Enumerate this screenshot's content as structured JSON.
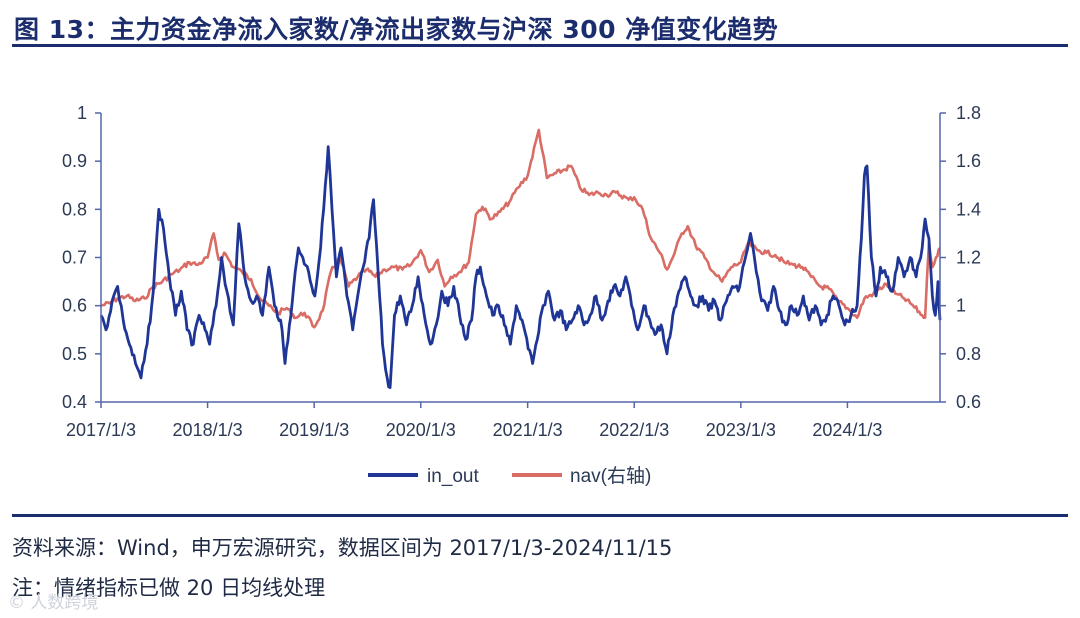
{
  "header": {
    "title": "图 13：主力资金净流入家数/净流出家数与沪深 300 净值变化趋势"
  },
  "footer": {
    "source": "资料来源：Wind，申万宏源研究，数据区间为 2017/1/3-2024/11/15",
    "note": "注：情绪指标已做 20 日均线处理",
    "watermark": "© 人数跨境"
  },
  "colors": {
    "accent": "#1c2d6e",
    "in_out": "#1f3696",
    "nav": "#d96c64",
    "axis": "#5566a8"
  },
  "chart_data": {
    "type": "line",
    "title": "",
    "x_tick_labels": [
      "2017/1/3",
      "2018/1/3",
      "2019/1/3",
      "2020/1/3",
      "2021/1/3",
      "2022/1/3",
      "2023/1/3",
      "2024/1/3"
    ],
    "x_range": [
      "2017/1/3",
      "2024/11/15"
    ],
    "y_left": {
      "min": 0.4,
      "max": 1.0,
      "ticks": [
        "0.4",
        "0.5",
        "0.6",
        "0.7",
        "0.8",
        "0.9",
        "1"
      ]
    },
    "y_right": {
      "min": 0.6,
      "max": 1.8,
      "ticks": [
        "0.6",
        "0.8",
        "1",
        "1.2",
        "1.4",
        "1.6",
        "1.8"
      ]
    },
    "legend_position": "bottom",
    "grid": false,
    "series": [
      {
        "name": "in_out",
        "axis": "left",
        "points": [
          [
            "2017-01-03",
            0.58
          ],
          [
            "2017-01-20",
            0.55
          ],
          [
            "2017-02-10",
            0.61
          ],
          [
            "2017-03-01",
            0.64
          ],
          [
            "2017-03-20",
            0.57
          ],
          [
            "2017-04-10",
            0.52
          ],
          [
            "2017-05-01",
            0.48
          ],
          [
            "2017-05-20",
            0.45
          ],
          [
            "2017-06-10",
            0.52
          ],
          [
            "2017-07-01",
            0.63
          ],
          [
            "2017-07-20",
            0.8
          ],
          [
            "2017-08-05",
            0.76
          ],
          [
            "2017-08-25",
            0.66
          ],
          [
            "2017-09-15",
            0.58
          ],
          [
            "2017-10-05",
            0.63
          ],
          [
            "2017-10-25",
            0.55
          ],
          [
            "2017-11-15",
            0.52
          ],
          [
            "2017-12-05",
            0.58
          ],
          [
            "2017-12-25",
            0.55
          ],
          [
            "2018-01-10",
            0.52
          ],
          [
            "2018-02-01",
            0.6
          ],
          [
            "2018-02-20",
            0.7
          ],
          [
            "2018-03-10",
            0.63
          ],
          [
            "2018-04-01",
            0.56
          ],
          [
            "2018-04-20",
            0.77
          ],
          [
            "2018-05-10",
            0.66
          ],
          [
            "2018-06-01",
            0.61
          ],
          [
            "2018-06-20",
            0.62
          ],
          [
            "2018-07-10",
            0.58
          ],
          [
            "2018-08-01",
            0.68
          ],
          [
            "2018-08-20",
            0.6
          ],
          [
            "2018-09-10",
            0.57
          ],
          [
            "2018-09-25",
            0.48
          ],
          [
            "2018-10-10",
            0.56
          ],
          [
            "2018-10-25",
            0.64
          ],
          [
            "2018-11-10",
            0.72
          ],
          [
            "2018-11-25",
            0.7
          ],
          [
            "2018-12-15",
            0.67
          ],
          [
            "2019-01-05",
            0.62
          ],
          [
            "2019-01-25",
            0.72
          ],
          [
            "2019-02-10",
            0.85
          ],
          [
            "2019-02-20",
            0.93
          ],
          [
            "2019-03-05",
            0.8
          ],
          [
            "2019-03-20",
            0.66
          ],
          [
            "2019-04-05",
            0.72
          ],
          [
            "2019-04-25",
            0.62
          ],
          [
            "2019-05-15",
            0.55
          ],
          [
            "2019-06-01",
            0.62
          ],
          [
            "2019-06-20",
            0.68
          ],
          [
            "2019-07-10",
            0.74
          ],
          [
            "2019-07-25",
            0.82
          ],
          [
            "2019-08-10",
            0.67
          ],
          [
            "2019-08-25",
            0.52
          ],
          [
            "2019-09-10",
            0.45
          ],
          [
            "2019-09-20",
            0.43
          ],
          [
            "2019-10-05",
            0.58
          ],
          [
            "2019-10-25",
            0.62
          ],
          [
            "2019-11-15",
            0.56
          ],
          [
            "2019-12-05",
            0.6
          ],
          [
            "2019-12-25",
            0.66
          ],
          [
            "2020-01-15",
            0.58
          ],
          [
            "2020-02-05",
            0.52
          ],
          [
            "2020-02-25",
            0.56
          ],
          [
            "2020-03-15",
            0.63
          ],
          [
            "2020-04-05",
            0.6
          ],
          [
            "2020-04-25",
            0.64
          ],
          [
            "2020-05-15",
            0.58
          ],
          [
            "2020-06-05",
            0.53
          ],
          [
            "2020-06-25",
            0.57
          ],
          [
            "2020-07-10",
            0.66
          ],
          [
            "2020-07-25",
            0.68
          ],
          [
            "2020-08-15",
            0.62
          ],
          [
            "2020-09-05",
            0.58
          ],
          [
            "2020-09-25",
            0.6
          ],
          [
            "2020-10-15",
            0.56
          ],
          [
            "2020-11-05",
            0.52
          ],
          [
            "2020-11-25",
            0.6
          ],
          [
            "2020-12-15",
            0.57
          ],
          [
            "2021-01-05",
            0.51
          ],
          [
            "2021-01-20",
            0.48
          ],
          [
            "2021-02-05",
            0.53
          ],
          [
            "2021-02-25",
            0.6
          ],
          [
            "2021-03-15",
            0.63
          ],
          [
            "2021-04-05",
            0.57
          ],
          [
            "2021-04-25",
            0.59
          ],
          [
            "2021-05-15",
            0.55
          ],
          [
            "2021-06-05",
            0.57
          ],
          [
            "2021-06-25",
            0.6
          ],
          [
            "2021-07-15",
            0.56
          ],
          [
            "2021-08-05",
            0.58
          ],
          [
            "2021-08-25",
            0.62
          ],
          [
            "2021-09-15",
            0.57
          ],
          [
            "2021-10-05",
            0.61
          ],
          [
            "2021-10-25",
            0.64
          ],
          [
            "2021-11-15",
            0.62
          ],
          [
            "2021-12-05",
            0.66
          ],
          [
            "2021-12-25",
            0.6
          ],
          [
            "2022-01-15",
            0.55
          ],
          [
            "2022-02-05",
            0.6
          ],
          [
            "2022-02-25",
            0.57
          ],
          [
            "2022-03-15",
            0.54
          ],
          [
            "2022-04-05",
            0.56
          ],
          [
            "2022-04-25",
            0.5
          ],
          [
            "2022-05-15",
            0.58
          ],
          [
            "2022-06-05",
            0.63
          ],
          [
            "2022-06-25",
            0.66
          ],
          [
            "2022-07-15",
            0.62
          ],
          [
            "2022-08-05",
            0.6
          ],
          [
            "2022-08-25",
            0.62
          ],
          [
            "2022-09-15",
            0.59
          ],
          [
            "2022-10-05",
            0.61
          ],
          [
            "2022-10-25",
            0.57
          ],
          [
            "2022-11-15",
            0.61
          ],
          [
            "2022-12-05",
            0.64
          ],
          [
            "2022-12-25",
            0.63
          ],
          [
            "2023-01-15",
            0.69
          ],
          [
            "2023-02-05",
            0.75
          ],
          [
            "2023-02-25",
            0.67
          ],
          [
            "2023-03-15",
            0.61
          ],
          [
            "2023-04-05",
            0.59
          ],
          [
            "2023-04-25",
            0.64
          ],
          [
            "2023-05-15",
            0.59
          ],
          [
            "2023-06-05",
            0.56
          ],
          [
            "2023-06-25",
            0.6
          ],
          [
            "2023-07-15",
            0.58
          ],
          [
            "2023-08-05",
            0.62
          ],
          [
            "2023-08-25",
            0.57
          ],
          [
            "2023-09-15",
            0.6
          ],
          [
            "2023-10-05",
            0.56
          ],
          [
            "2023-10-25",
            0.58
          ],
          [
            "2023-11-15",
            0.62
          ],
          [
            "2023-12-05",
            0.6
          ],
          [
            "2023-12-25",
            0.56
          ],
          [
            "2024-01-15",
            0.58
          ],
          [
            "2024-02-05",
            0.6
          ],
          [
            "2024-02-20",
            0.74
          ],
          [
            "2024-03-01",
            0.87
          ],
          [
            "2024-03-10",
            0.89
          ],
          [
            "2024-03-25",
            0.7
          ],
          [
            "2024-04-10",
            0.62
          ],
          [
            "2024-04-25",
            0.68
          ],
          [
            "2024-05-15",
            0.66
          ],
          [
            "2024-06-05",
            0.63
          ],
          [
            "2024-06-25",
            0.7
          ],
          [
            "2024-07-15",
            0.66
          ],
          [
            "2024-08-05",
            0.7
          ],
          [
            "2024-08-25",
            0.66
          ],
          [
            "2024-09-10",
            0.7
          ],
          [
            "2024-09-25",
            0.78
          ],
          [
            "2024-10-08",
            0.74
          ],
          [
            "2024-10-20",
            0.62
          ],
          [
            "2024-10-30",
            0.58
          ],
          [
            "2024-11-08",
            0.65
          ],
          [
            "2024-11-15",
            0.57
          ]
        ]
      },
      {
        "name": "nav",
        "label": "nav(右轴)",
        "axis": "right",
        "points": [
          [
            "2017-01-03",
            1.0
          ],
          [
            "2017-02-01",
            1.01
          ],
          [
            "2017-03-01",
            1.03
          ],
          [
            "2017-04-01",
            1.04
          ],
          [
            "2017-05-01",
            1.02
          ],
          [
            "2017-06-01",
            1.03
          ],
          [
            "2017-07-01",
            1.08
          ],
          [
            "2017-08-01",
            1.1
          ],
          [
            "2017-09-01",
            1.13
          ],
          [
            "2017-10-01",
            1.15
          ],
          [
            "2017-11-01",
            1.18
          ],
          [
            "2017-12-01",
            1.17
          ],
          [
            "2018-01-03",
            1.2
          ],
          [
            "2018-01-24",
            1.3
          ],
          [
            "2018-02-10",
            1.19
          ],
          [
            "2018-03-01",
            1.22
          ],
          [
            "2018-04-01",
            1.16
          ],
          [
            "2018-05-01",
            1.14
          ],
          [
            "2018-06-01",
            1.11
          ],
          [
            "2018-07-01",
            1.03
          ],
          [
            "2018-08-01",
            1.0
          ],
          [
            "2018-09-01",
            0.97
          ],
          [
            "2018-10-01",
            0.99
          ],
          [
            "2018-11-01",
            0.95
          ],
          [
            "2018-12-01",
            0.97
          ],
          [
            "2019-01-03",
            0.91
          ],
          [
            "2019-02-01",
            0.98
          ],
          [
            "2019-03-01",
            1.14
          ],
          [
            "2019-04-01",
            1.2
          ],
          [
            "2019-05-01",
            1.08
          ],
          [
            "2019-06-01",
            1.12
          ],
          [
            "2019-07-01",
            1.15
          ],
          [
            "2019-08-01",
            1.12
          ],
          [
            "2019-09-01",
            1.15
          ],
          [
            "2019-10-01",
            1.16
          ],
          [
            "2019-11-01",
            1.15
          ],
          [
            "2019-12-01",
            1.17
          ],
          [
            "2020-01-03",
            1.23
          ],
          [
            "2020-02-01",
            1.14
          ],
          [
            "2020-03-01",
            1.19
          ],
          [
            "2020-03-25",
            1.08
          ],
          [
            "2020-04-15",
            1.12
          ],
          [
            "2020-05-15",
            1.14
          ],
          [
            "2020-06-15",
            1.18
          ],
          [
            "2020-07-10",
            1.38
          ],
          [
            "2020-08-01",
            1.41
          ],
          [
            "2020-09-01",
            1.36
          ],
          [
            "2020-10-01",
            1.39
          ],
          [
            "2020-11-01",
            1.43
          ],
          [
            "2020-12-01",
            1.49
          ],
          [
            "2021-01-03",
            1.54
          ],
          [
            "2021-02-10",
            1.73
          ],
          [
            "2021-03-10",
            1.53
          ],
          [
            "2021-04-10",
            1.55
          ],
          [
            "2021-05-01",
            1.56
          ],
          [
            "2021-06-01",
            1.58
          ],
          [
            "2021-07-01",
            1.49
          ],
          [
            "2021-08-01",
            1.46
          ],
          [
            "2021-09-01",
            1.47
          ],
          [
            "2021-10-01",
            1.46
          ],
          [
            "2021-11-01",
            1.47
          ],
          [
            "2021-12-15",
            1.44
          ],
          [
            "2022-01-03",
            1.45
          ],
          [
            "2022-02-01",
            1.4
          ],
          [
            "2022-03-01",
            1.28
          ],
          [
            "2022-04-01",
            1.22
          ],
          [
            "2022-04-25",
            1.15
          ],
          [
            "2022-05-15",
            1.2
          ],
          [
            "2022-06-15",
            1.3
          ],
          [
            "2022-07-05",
            1.33
          ],
          [
            "2022-08-01",
            1.25
          ],
          [
            "2022-09-01",
            1.2
          ],
          [
            "2022-10-01",
            1.14
          ],
          [
            "2022-10-31",
            1.1
          ],
          [
            "2022-12-01",
            1.16
          ],
          [
            "2023-01-03",
            1.18
          ],
          [
            "2023-01-28",
            1.26
          ],
          [
            "2023-03-01",
            1.23
          ],
          [
            "2023-04-01",
            1.22
          ],
          [
            "2023-05-01",
            1.21
          ],
          [
            "2023-06-01",
            1.18
          ],
          [
            "2023-07-01",
            1.17
          ],
          [
            "2023-08-01",
            1.16
          ],
          [
            "2023-09-01",
            1.12
          ],
          [
            "2023-10-01",
            1.08
          ],
          [
            "2023-11-01",
            1.07
          ],
          [
            "2023-12-01",
            1.02
          ],
          [
            "2024-01-03",
            0.99
          ],
          [
            "2024-02-05",
            0.95
          ],
          [
            "2024-03-01",
            1.03
          ],
          [
            "2024-04-01",
            1.05
          ],
          [
            "2024-05-15",
            1.09
          ],
          [
            "2024-06-15",
            1.05
          ],
          [
            "2024-07-15",
            1.03
          ],
          [
            "2024-08-15",
            1.0
          ],
          [
            "2024-09-15",
            0.96
          ],
          [
            "2024-09-25",
            0.95
          ],
          [
            "2024-10-08",
            1.26
          ],
          [
            "2024-10-20",
            1.16
          ],
          [
            "2024-11-01",
            1.2
          ],
          [
            "2024-11-15",
            1.24
          ]
        ]
      }
    ]
  }
}
